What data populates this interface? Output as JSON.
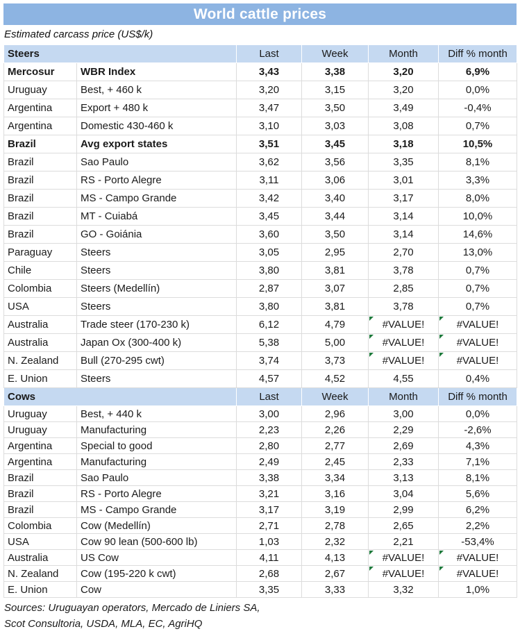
{
  "title": "World cattle prices",
  "subtitle": "Estimated carcass price (US$/k)",
  "columns": [
    "Last",
    "Week",
    "Month",
    "Diff % month"
  ],
  "error_value": "#VALUE!",
  "colors": {
    "title_bg": "#8db4e2",
    "section_bg": "#c5d9f1",
    "error_flag_green": "#1e7a3c",
    "gridline": "#dcdcdc"
  },
  "sections": [
    {
      "name": "Steers",
      "rows": [
        {
          "region": "Mercosur",
          "desc": "WBR Index",
          "last": "3,43",
          "week": "3,38",
          "month": "3,20",
          "diff": "6,9%",
          "bold": true
        },
        {
          "region": "Uruguay",
          "desc": "Best, + 460 k",
          "last": "3,20",
          "week": "3,15",
          "month": "3,20",
          "diff": "0,0%"
        },
        {
          "region": "Argentina",
          "desc": "Export + 480 k",
          "last": "3,47",
          "week": "3,50",
          "month": "3,49",
          "diff": "-0,4%"
        },
        {
          "region": "Argentina",
          "desc": "Domestic 430-460 k",
          "last": "3,10",
          "week": "3,03",
          "month": "3,08",
          "diff": "0,7%"
        },
        {
          "region": "Brazil",
          "desc": "Avg export states",
          "last": "3,51",
          "week": "3,45",
          "month": "3,18",
          "diff": "10,5%",
          "bold": true
        },
        {
          "region": "Brazil",
          "desc": "Sao Paulo",
          "last": "3,62",
          "week": "3,56",
          "month": "3,35",
          "diff": "8,1%"
        },
        {
          "region": "Brazil",
          "desc": "RS - Porto Alegre",
          "last": "3,11",
          "week": "3,06",
          "month": "3,01",
          "diff": "3,3%"
        },
        {
          "region": "Brazil",
          "desc": "MS - Campo Grande",
          "last": "3,42",
          "week": "3,40",
          "month": "3,17",
          "diff": "8,0%"
        },
        {
          "region": "Brazil",
          "desc": "MT - Cuiabá",
          "last": "3,45",
          "week": "3,44",
          "month": "3,14",
          "diff": "10,0%"
        },
        {
          "region": "Brazil",
          "desc": "GO - Goiánia",
          "last": "3,60",
          "week": "3,50",
          "month": "3,14",
          "diff": "14,6%"
        },
        {
          "region": "Paraguay",
          "desc": "Steers",
          "last": "3,05",
          "week": "2,95",
          "month": "2,70",
          "diff": "13,0%"
        },
        {
          "region": "Chile",
          "desc": "Steers",
          "last": "3,80",
          "week": "3,81",
          "month": "3,78",
          "diff": "0,7%"
        },
        {
          "region": "Colombia",
          "desc": "Steers (Medellín)",
          "last": "2,87",
          "week": "3,07",
          "month": "2,85",
          "diff": "0,7%"
        },
        {
          "region": "USA",
          "desc": "Steers",
          "last": "3,80",
          "week": "3,81",
          "month": "3,78",
          "diff": "0,7%"
        },
        {
          "region": "Australia",
          "desc": "Trade steer (170-230 k)",
          "last": "6,12",
          "week": "4,79",
          "month": "#VALUE!",
          "diff": "#VALUE!"
        },
        {
          "region": "Australia",
          "desc": "Japan Ox (300-400 k)",
          "last": "5,38",
          "week": "5,00",
          "month": "#VALUE!",
          "diff": "#VALUE!"
        },
        {
          "region": "N. Zealand",
          "desc": "Bull (270-295 cwt)",
          "last": "3,74",
          "week": "3,73",
          "month": "#VALUE!",
          "diff": "#VALUE!"
        },
        {
          "region": "E. Union",
          "desc": "Steers",
          "last": "4,57",
          "week": "4,52",
          "month": "4,55",
          "diff": "0,4%"
        }
      ]
    },
    {
      "name": "Cows",
      "rows": [
        {
          "region": "Uruguay",
          "desc": "Best, + 440 k",
          "last": "3,00",
          "week": "2,96",
          "month": "3,00",
          "diff": "0,0%"
        },
        {
          "region": "Uruguay",
          "desc": "Manufacturing",
          "last": "2,23",
          "week": "2,26",
          "month": "2,29",
          "diff": "-2,6%"
        },
        {
          "region": "Argentina",
          "desc": "Special to good",
          "last": "2,80",
          "week": "2,77",
          "month": "2,69",
          "diff": "4,3%"
        },
        {
          "region": "Argentina",
          "desc": "Manufacturing",
          "last": "2,49",
          "week": "2,45",
          "month": "2,33",
          "diff": "7,1%"
        },
        {
          "region": "Brazil",
          "desc": "Sao Paulo",
          "last": "3,38",
          "week": "3,34",
          "month": "3,13",
          "diff": "8,1%"
        },
        {
          "region": "Brazil",
          "desc": "RS - Porto Alegre",
          "last": "3,21",
          "week": "3,16",
          "month": "3,04",
          "diff": "5,6%"
        },
        {
          "region": "Brazil",
          "desc": "MS - Campo Grande",
          "last": "3,17",
          "week": "3,19",
          "month": "2,99",
          "diff": "6,2%"
        },
        {
          "region": "Colombia",
          "desc": "Cow (Medellín)",
          "last": "2,71",
          "week": "2,78",
          "month": "2,65",
          "diff": "2,2%"
        },
        {
          "region": "USA",
          "desc": "Cow 90 lean (500-600 lb)",
          "last": "1,03",
          "week": "2,32",
          "month": "2,21",
          "diff": "-53,4%"
        },
        {
          "region": "Australia",
          "desc": "US Cow",
          "last": "4,11",
          "week": "4,13",
          "month": "#VALUE!",
          "diff": "#VALUE!"
        },
        {
          "region": "N. Zealand",
          "desc": "Cow (195-220 k cwt)",
          "last": "2,68",
          "week": "2,67",
          "month": "#VALUE!",
          "diff": "#VALUE!"
        },
        {
          "region": "E. Union",
          "desc": "Cow",
          "last": "3,35",
          "week": "3,33",
          "month": "3,32",
          "diff": "1,0%"
        }
      ]
    }
  ],
  "sources_line1": "Sources: Uruguayan operators, Mercado de Liniers SA,",
  "sources_line2": "Scot Consultoria, USDA, MLA, EC, AgriHQ"
}
